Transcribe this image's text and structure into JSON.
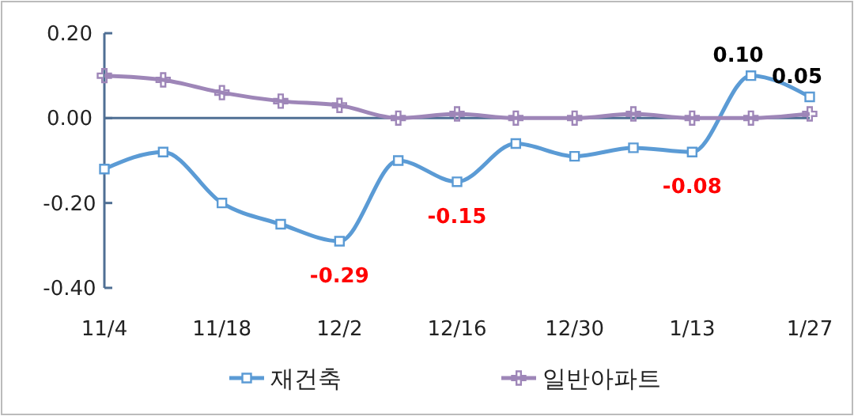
{
  "chart_data": {
    "type": "line",
    "categories": [
      "11/4",
      null,
      "11/18",
      null,
      "12/2",
      null,
      "12/16",
      null,
      "12/30",
      null,
      "1/13",
      null,
      "1/27"
    ],
    "series": [
      {
        "name": "재건축",
        "color": "#5b9bd5",
        "marker": "square",
        "values": [
          -0.12,
          -0.08,
          -0.2,
          -0.25,
          -0.29,
          -0.1,
          -0.15,
          -0.06,
          -0.09,
          -0.07,
          -0.08,
          0.1,
          0.05
        ],
        "value_labels": [
          null,
          null,
          null,
          null,
          "-0.29",
          null,
          "-0.15",
          null,
          null,
          null,
          "-0.08",
          "0.10",
          "0.05"
        ]
      },
      {
        "name": "일반아파트",
        "color": "#9e86b8",
        "marker": "cross",
        "values": [
          0.1,
          0.09,
          0.06,
          0.04,
          0.03,
          0.0,
          0.01,
          0.0,
          0.0,
          0.01,
          0.0,
          0.0,
          0.01
        ]
      }
    ],
    "ylim": [
      -0.4,
      0.2
    ],
    "yticks": [
      {
        "value": -0.4,
        "label": "-0.40"
      },
      {
        "value": -0.2,
        "label": "-0.20"
      },
      {
        "value": 0,
        "label": "0.00"
      },
      {
        "value": 0.2,
        "label": "0.20"
      }
    ],
    "ref_lines": [
      {
        "axis": "y",
        "value": 0,
        "color": "#4f6f94"
      }
    ],
    "grid": false,
    "legend": "bottom"
  }
}
